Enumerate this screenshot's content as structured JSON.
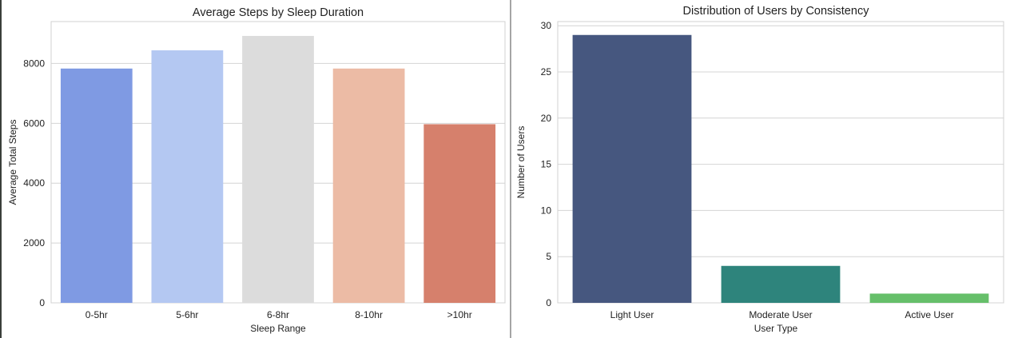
{
  "chart_data": [
    {
      "type": "bar",
      "title": "Average Steps by Sleep Duration",
      "xlabel": "Sleep Range",
      "ylabel": "Average Total Steps",
      "categories": [
        "0-5hr",
        "5-6hr",
        "6-8hr",
        "8-10hr",
        ">10hr"
      ],
      "values": [
        7830,
        8440,
        8920,
        7830,
        5970
      ],
      "colors": [
        "#7f9ae3",
        "#b4c8f2",
        "#dcdcdc",
        "#ecbba5",
        "#d6806c"
      ],
      "ylim": [
        0,
        9400
      ],
      "yticks": [
        0,
        2000,
        4000,
        6000,
        8000
      ],
      "grid": true
    },
    {
      "type": "bar",
      "title": "Distribution of Users by Consistency",
      "xlabel": "User Type",
      "ylabel": "Number of Users",
      "categories": [
        "Light User",
        "Moderate User",
        "Active User"
      ],
      "values": [
        29,
        4,
        1
      ],
      "colors": [
        "#46577f",
        "#2e847c",
        "#66bf6a"
      ],
      "ylim": [
        0,
        30.45
      ],
      "yticks": [
        0,
        5,
        10,
        15,
        20,
        25,
        30
      ],
      "grid": true
    }
  ]
}
